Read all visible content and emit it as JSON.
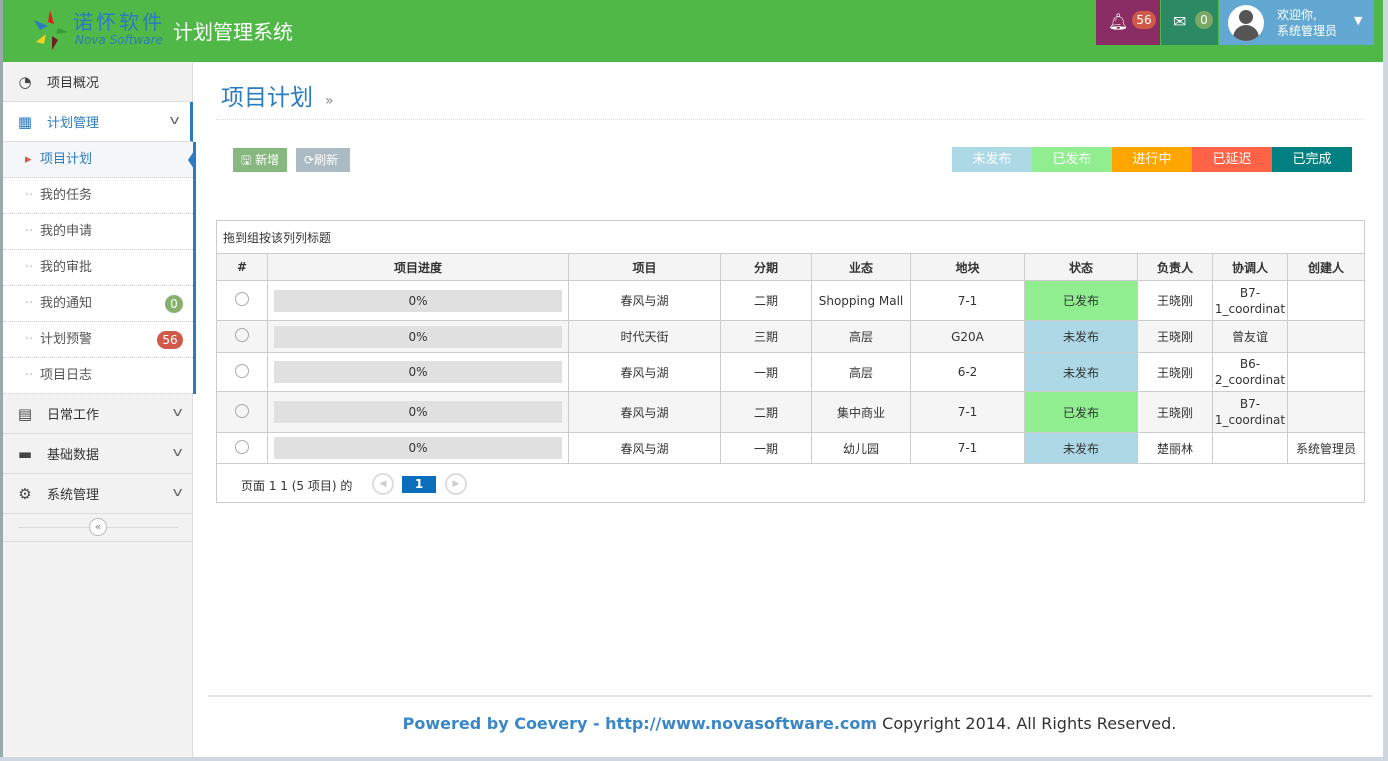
{
  "header": {
    "logo_cn": "诺怀软件",
    "logo_en": "Nova Software",
    "app_title": "计划管理系统",
    "notifications": "56",
    "messages": "0",
    "welcome": "欢迎你,",
    "user": "系统管理员"
  },
  "sidebar": {
    "items": [
      {
        "label": "项目概况",
        "icon": "dashboard-icon"
      },
      {
        "label": "计划管理",
        "icon": "calendar-icon"
      },
      {
        "label": "日常工作",
        "icon": "list-icon"
      },
      {
        "label": "基础数据",
        "icon": "monitor-icon"
      },
      {
        "label": "系统管理",
        "icon": "gears-icon"
      }
    ],
    "subitems": [
      {
        "label": "项目计划"
      },
      {
        "label": "我的任务"
      },
      {
        "label": "我的申请"
      },
      {
        "label": "我的审批"
      },
      {
        "label": "我的通知",
        "badge": "0"
      },
      {
        "label": "计划预警",
        "badge": "56"
      },
      {
        "label": "项目日志"
      }
    ]
  },
  "page": {
    "title": "项目计划",
    "crumb_sep": "»",
    "add": "新增",
    "refresh": "刷新"
  },
  "legend": [
    {
      "label": "未发布",
      "color": "#add8e6"
    },
    {
      "label": "已发布",
      "color": "#90ee90"
    },
    {
      "label": "进行中",
      "color": "#ffa500"
    },
    {
      "label": "已延迟",
      "color": "#ff6347"
    },
    {
      "label": "已完成",
      "color": "#008080"
    }
  ],
  "table": {
    "group_hint": "拖到组按该列列标题",
    "columns": [
      "#",
      "项目进度",
      "项目",
      "分期",
      "业态",
      "地块",
      "状态",
      "负责人",
      "协调人",
      "创建人"
    ],
    "rows": [
      [
        "0%",
        "春风与湖",
        "二期",
        "Shopping Mall",
        "7-1",
        "已发布",
        "王晓刚",
        "B7-1_coordinat",
        ""
      ],
      [
        "0%",
        "时代天街",
        "三期",
        "高层",
        "G20A",
        "未发布",
        "王晓刚",
        "曾友谊",
        ""
      ],
      [
        "0%",
        "春风与湖",
        "一期",
        "高层",
        "6-2",
        "未发布",
        "王晓刚",
        "B6-2_coordinat",
        ""
      ],
      [
        "0%",
        "春风与湖",
        "二期",
        "集中商业",
        "7-1",
        "已发布",
        "王晓刚",
        "B7-1_coordinat",
        ""
      ],
      [
        "0%",
        "春风与湖",
        "一期",
        "幼儿园",
        "7-1",
        "未发布",
        "楚丽林",
        "",
        "系统管理员"
      ]
    ],
    "pager": {
      "text": "页面 1 1 (5 项目) 的",
      "current": "1"
    }
  },
  "footer": {
    "powered": "Powered by Coevery - http://www.novasoftware.com",
    "copyright": " Copyright 2014. All Rights Reserved."
  }
}
